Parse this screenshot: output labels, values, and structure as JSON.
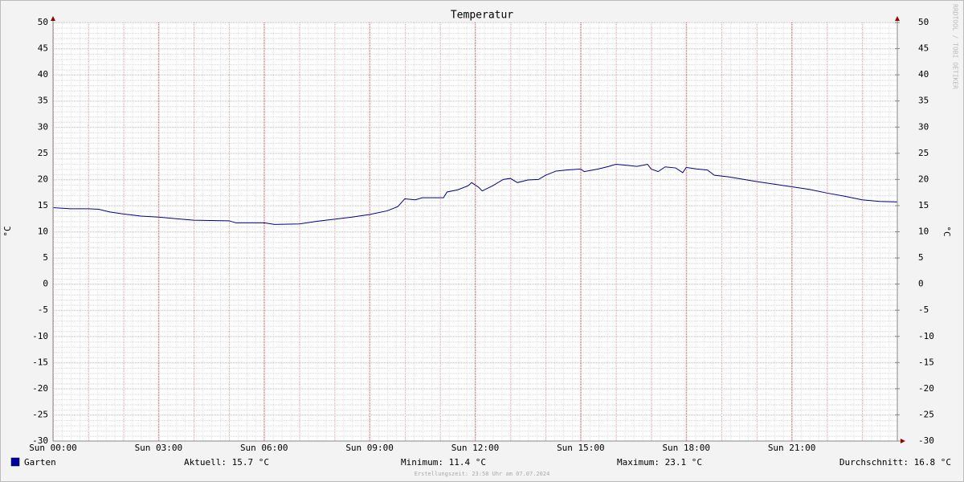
{
  "chart_data": {
    "type": "line",
    "title": "Temperatur",
    "y_label": "°C",
    "y2_label": "°C",
    "watermark": "RRDTOOL / TOBI OETIKER",
    "x": [
      0,
      0.5,
      1,
      1.3,
      1.6,
      2,
      2.5,
      3,
      3.5,
      4,
      5,
      5.2,
      6,
      6.3,
      7,
      7.5,
      8,
      8.5,
      9,
      9.5,
      9.8,
      10,
      10.3,
      10.5,
      11.1,
      11.2,
      11.5,
      11.8,
      11.9,
      12.1,
      12.2,
      12.5,
      12.8,
      13,
      13.2,
      13.5,
      13.8,
      14,
      14.3,
      14.6,
      15,
      15.1,
      15.5,
      15.8,
      16,
      16.3,
      16.6,
      16.9,
      17,
      17.2,
      17.4,
      17.7,
      17.9,
      18,
      18.3,
      18.6,
      18.8,
      19.2,
      20,
      21,
      21.5,
      22,
      22.5,
      23,
      23.5,
      24
    ],
    "series": [
      {
        "name": "Garten",
        "color": "#000080",
        "values": [
          14.6,
          14.4,
          14.4,
          14.3,
          13.8,
          13.4,
          13.0,
          12.8,
          12.5,
          12.2,
          12.1,
          11.7,
          11.7,
          11.4,
          11.5,
          12.0,
          12.4,
          12.8,
          13.3,
          14.0,
          14.8,
          16.3,
          16.1,
          16.5,
          16.5,
          17.6,
          18.0,
          18.8,
          19.4,
          18.5,
          17.8,
          18.8,
          20.0,
          20.2,
          19.4,
          19.9,
          20.0,
          20.8,
          21.6,
          21.8,
          22.0,
          21.5,
          22.0,
          22.5,
          22.9,
          22.7,
          22.5,
          22.9,
          22.0,
          21.5,
          22.4,
          22.2,
          21.3,
          22.3,
          22.0,
          21.8,
          20.8,
          20.5,
          19.6,
          18.6,
          18.1,
          17.4,
          16.8,
          16.1,
          15.8,
          15.7
        ]
      }
    ],
    "xlim": [
      0,
      24
    ],
    "xticks": [
      {
        "value": 0,
        "label": "Sun 00:00"
      },
      {
        "value": 3,
        "label": "Sun 03:00"
      },
      {
        "value": 6,
        "label": "Sun 06:00"
      },
      {
        "value": 9,
        "label": "Sun 09:00"
      },
      {
        "value": 12,
        "label": "Sun 12:00"
      },
      {
        "value": 15,
        "label": "Sun 15:00"
      },
      {
        "value": 18,
        "label": "Sun 18:00"
      },
      {
        "value": 21,
        "label": "Sun 21:00"
      }
    ],
    "ylim": [
      -30,
      50
    ],
    "yticks": [
      -30,
      -25,
      -20,
      -15,
      -10,
      -5,
      0,
      5,
      10,
      15,
      20,
      25,
      30,
      35,
      40,
      45,
      50
    ],
    "y2lim": [
      -30,
      50
    ],
    "y2ticks": [
      -30,
      -25,
      -20,
      -15,
      -10,
      -5,
      0,
      5,
      10,
      15,
      20,
      25,
      30,
      35,
      40,
      45,
      50
    ],
    "grid": true,
    "stats": [
      "Aktuell: 15.7 °C",
      "Minimum: 11.4 °C",
      "Maximum: 23.1 °C",
      "Durchschnitt: 16.8 °C"
    ],
    "footer": "Erstellungszeit: 23:58 Uhr am 07.07.2024"
  }
}
